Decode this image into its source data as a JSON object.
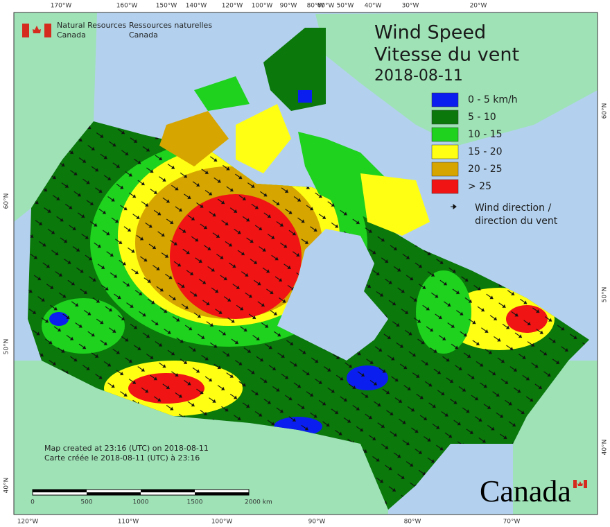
{
  "header": {
    "agency_en": [
      "Natural Resources",
      "Canada"
    ],
    "agency_fr": [
      "Ressources naturelles",
      "Canada"
    ]
  },
  "title": [
    "Wind Speed",
    "Vitesse du vent"
  ],
  "date": "2018-08-11",
  "legend": [
    {
      "label": "0 - 5 km/h",
      "color": "#0a1ef0"
    },
    {
      "label": "5 - 10",
      "color": "#0a780a"
    },
    {
      "label": "10 - 15",
      "color": "#1ed21e"
    },
    {
      "label": "15 - 20",
      "color": "#ffff14"
    },
    {
      "label": "20 - 25",
      "color": "#d7a500"
    },
    {
      "label": "> 25",
      "color": "#f01414"
    }
  ],
  "wind_direction": [
    "Wind direction /",
    "direction du vent"
  ],
  "notes": [
    "Map created at 23:16 (UTC) on 2018-08-11",
    "Carte créée le 2018-08-11 (UTC) à 23:16"
  ],
  "scale_bar": [
    "0",
    "500",
    "1000",
    "1500",
    "2000  km"
  ],
  "top_ticks": [
    "170°W",
    "160°W",
    "150°W",
    "140°W",
    "120°W",
    "100°W",
    "90°W",
    "80°W",
    "60°W",
    "50°W",
    "40°W",
    "30°W",
    "20°W"
  ],
  "bottom_ticks": [
    "120°W",
    "110°W",
    "100°W",
    "90°W",
    "80°W",
    "70°W"
  ],
  "left_ticks": [
    "60°N",
    "50°N",
    "40°N"
  ],
  "right_ticks": [
    "60°N",
    "50°N",
    "40°N"
  ],
  "wordmark": "Canada"
}
